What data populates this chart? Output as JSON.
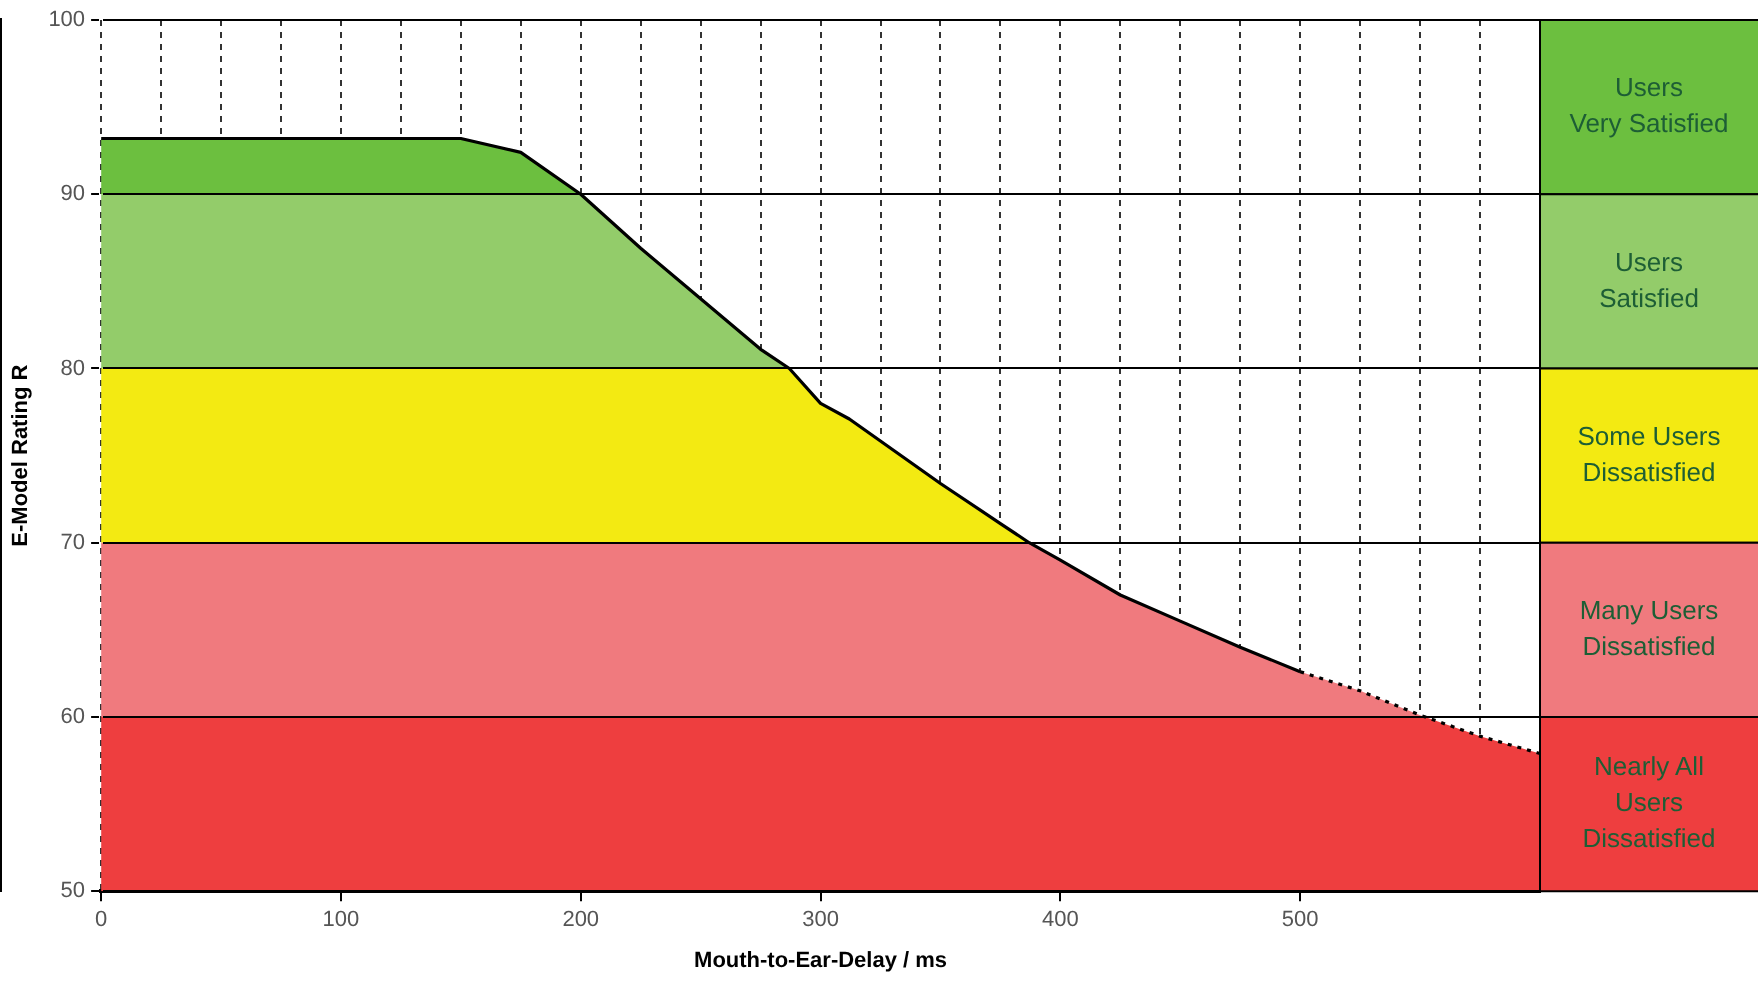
{
  "chart_data": {
    "type": "line",
    "xlabel": "Mouth-to-Ear-Delay / ms",
    "ylabel": "E-Model Rating R",
    "series": [
      {
        "type": "line",
        "color": "#000000",
        "line_style": "solid",
        "x": [
          0,
          50,
          100,
          150,
          175,
          200,
          225,
          250,
          275,
          287,
          300,
          312,
          350,
          375,
          387,
          400,
          425,
          450,
          475,
          500
        ],
        "values": [
          93.2,
          93.2,
          93.2,
          93.2,
          92.4,
          90,
          86.9,
          84,
          81.1,
          80,
          78,
          77.1,
          73.4,
          71.1,
          70,
          69,
          67,
          65.5,
          64,
          62.6
        ]
      },
      {
        "type": "line",
        "color": "#000000",
        "line_style": "dotted",
        "x": [
          500,
          525,
          550,
          575,
          600
        ],
        "values": [
          62.6,
          61.5,
          60.1,
          58.9,
          57.9
        ]
      }
    ],
    "bands": [
      {
        "axis": "y",
        "from": 90,
        "to": 100,
        "label": "Users\nVery Satisfied",
        "color": "#6cbf3f"
      },
      {
        "axis": "y",
        "from": 80,
        "to": 90,
        "label": "Users\nSatisfied",
        "color": "#93cc6a"
      },
      {
        "axis": "y",
        "from": 70,
        "to": 80,
        "label": "Some Users\nDissatisfied",
        "color": "#f3ea12"
      },
      {
        "axis": "y",
        "from": 60,
        "to": 70,
        "label": "Many Users\nDissatisfied",
        "color": "#f07a7e"
      },
      {
        "axis": "y",
        "from": 50,
        "to": 60,
        "label": "Nearly All\nUsers\nDissatisfied",
        "color": "#ee3e3f"
      }
    ],
    "xlim": [
      0,
      600
    ],
    "xticks": [
      0,
      {
        "value": 25,
        "label": null
      },
      {
        "value": 50,
        "label": null
      },
      {
        "value": 75,
        "label": null
      },
      100,
      {
        "value": 125,
        "label": null
      },
      {
        "value": 150,
        "label": null
      },
      {
        "value": 175,
        "label": null
      },
      200,
      {
        "value": 225,
        "label": null
      },
      {
        "value": 250,
        "label": null
      },
      {
        "value": 275,
        "label": null
      },
      300,
      {
        "value": 325,
        "label": null
      },
      {
        "value": 350,
        "label": null
      },
      {
        "value": 375,
        "label": null
      },
      400,
      {
        "value": 425,
        "label": null
      },
      {
        "value": 450,
        "label": null
      },
      {
        "value": 475,
        "label": null
      },
      500,
      {
        "value": 525,
        "label": null
      },
      {
        "value": 550,
        "label": null
      },
      {
        "value": 575,
        "label": null
      }
    ],
    "ylim": [
      50,
      100
    ],
    "yticks": [
      50,
      60,
      70,
      80,
      90,
      100
    ],
    "grid": true,
    "legend": false,
    "marker": "none"
  }
}
